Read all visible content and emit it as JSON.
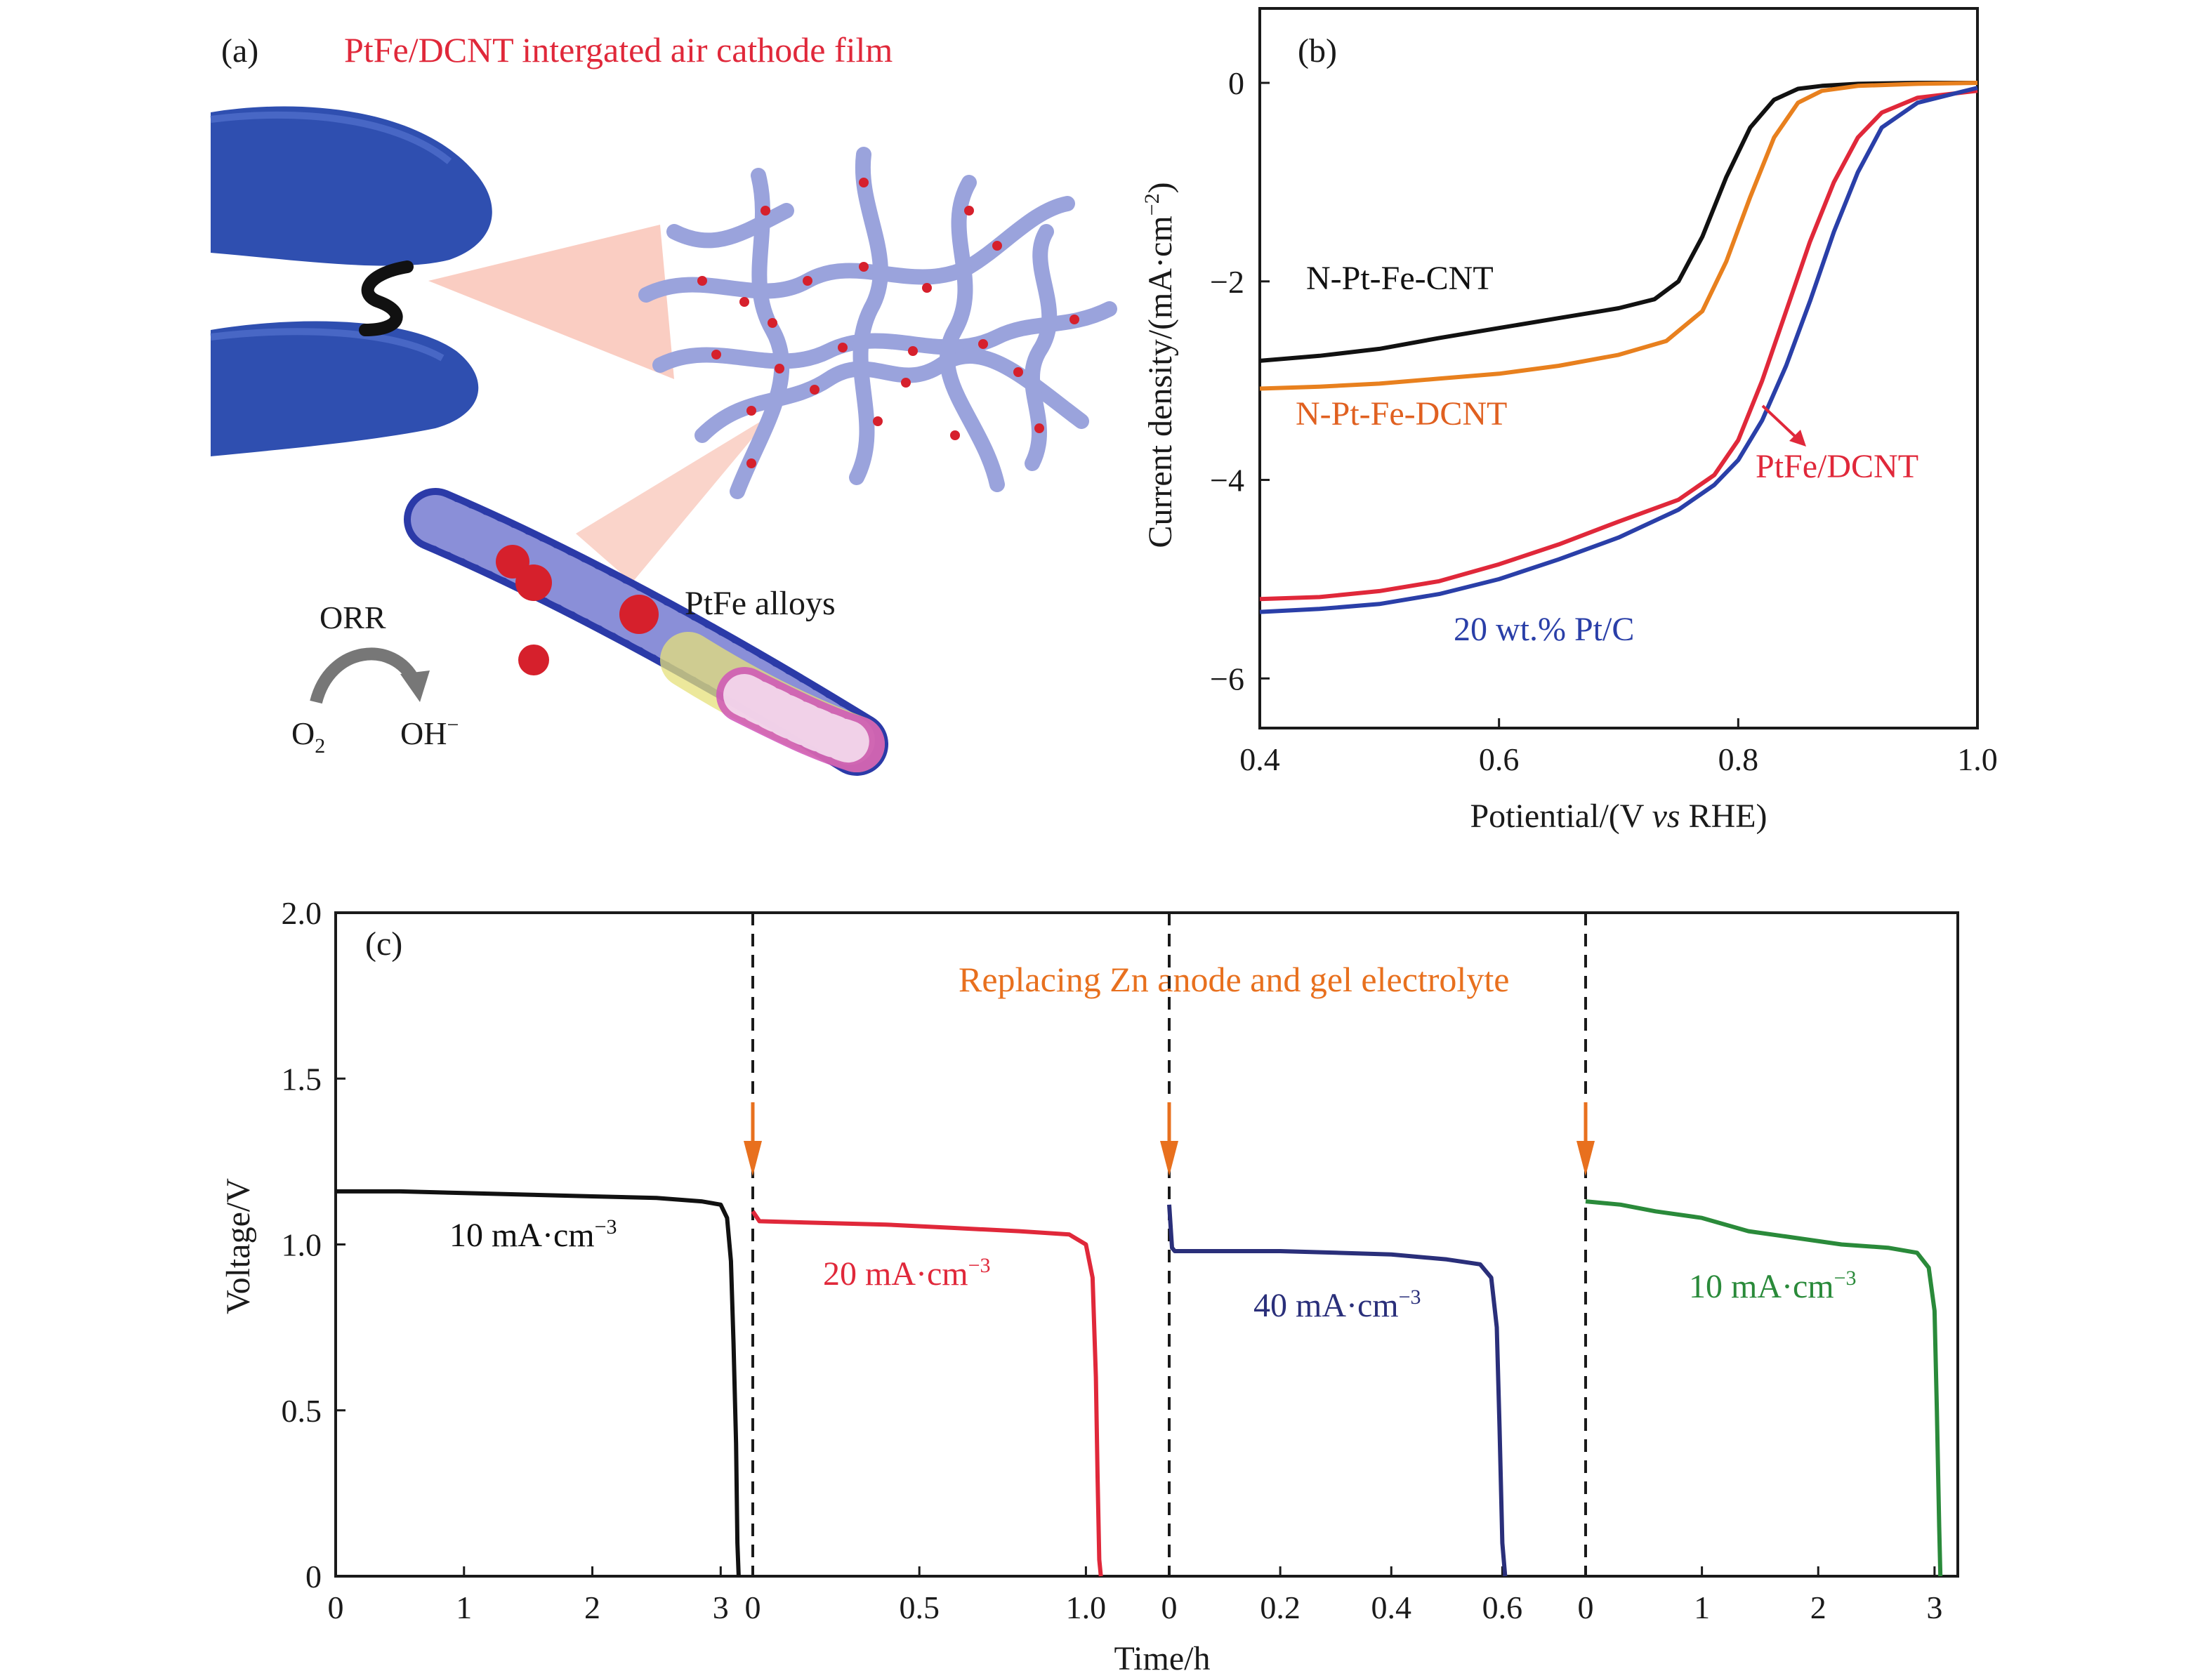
{
  "panel_a": {
    "label": "(a)",
    "title": "PtFe/DCNT intergated air cathode film",
    "alloy_label": "PtFe alloys",
    "orr_label": "ORR",
    "o2_main": "O",
    "o2_sub": "2",
    "oh_label": "OH",
    "oh_sup": "−",
    "icons": [
      "gloved-fingers-icon",
      "carbon-nanotube-network-icon",
      "nanotube-with-alloy-particles-icon",
      "curved-arrow-icon"
    ],
    "colors": {
      "title": "#e0283a",
      "glove": "#2f4fb0",
      "tube": "#9aa3dc",
      "particle": "#d6202c"
    }
  },
  "chart_data": [
    {
      "type": "line",
      "panel": "(b)",
      "xlabel_main": "Potiential/(V ",
      "xlabel_italic": "vs",
      "xlabel_rest": " RHE)",
      "ylabel_main": "Current density/(mA·cm",
      "ylabel_sup": "−2",
      "ylabel_close": ")",
      "xlim": [
        0.4,
        1.0
      ],
      "ylim": [
        -6.5,
        0.75
      ],
      "xticks": [
        "0.4",
        "0.6",
        "0.8",
        "1.0"
      ],
      "xtick_values": [
        0.4,
        0.6,
        0.8,
        1.0
      ],
      "yticks": [
        "0",
        "−2",
        "−4",
        "−6"
      ],
      "ytick_values": [
        0,
        -2,
        -4,
        -6
      ],
      "grid": false,
      "series": [
        {
          "name": "N-Pt-Fe-CNT",
          "color": "#111111",
          "x": [
            0.4,
            0.45,
            0.5,
            0.55,
            0.6,
            0.65,
            0.7,
            0.73,
            0.75,
            0.77,
            0.79,
            0.81,
            0.83,
            0.85,
            0.87,
            0.9,
            0.95,
            1.0
          ],
          "y": [
            -2.8,
            -2.75,
            -2.68,
            -2.57,
            -2.47,
            -2.37,
            -2.27,
            -2.18,
            -2.0,
            -1.55,
            -0.95,
            -0.45,
            -0.17,
            -0.06,
            -0.03,
            -0.01,
            0,
            0
          ]
        },
        {
          "name": "N-Pt-Fe-DCNT",
          "color": "#e8801e",
          "x": [
            0.4,
            0.45,
            0.5,
            0.55,
            0.6,
            0.65,
            0.7,
            0.74,
            0.77,
            0.79,
            0.81,
            0.83,
            0.85,
            0.87,
            0.9,
            0.95,
            1.0
          ],
          "y": [
            -3.08,
            -3.06,
            -3.03,
            -2.98,
            -2.93,
            -2.85,
            -2.74,
            -2.6,
            -2.3,
            -1.8,
            -1.15,
            -0.55,
            -0.2,
            -0.08,
            -0.03,
            -0.01,
            0
          ]
        },
        {
          "name": "PtFe/DCNT",
          "color": "#e0283a",
          "x": [
            0.4,
            0.45,
            0.5,
            0.55,
            0.6,
            0.65,
            0.7,
            0.75,
            0.78,
            0.8,
            0.82,
            0.84,
            0.86,
            0.88,
            0.9,
            0.92,
            0.95,
            1.0
          ],
          "y": [
            -5.2,
            -5.18,
            -5.12,
            -5.02,
            -4.85,
            -4.65,
            -4.42,
            -4.2,
            -3.95,
            -3.6,
            -3.0,
            -2.3,
            -1.6,
            -1.0,
            -0.55,
            -0.3,
            -0.15,
            -0.08
          ]
        },
        {
          "name": "20 wt.% Pt/C",
          "color": "#2a3fa8",
          "x": [
            0.4,
            0.45,
            0.5,
            0.55,
            0.6,
            0.65,
            0.7,
            0.75,
            0.78,
            0.8,
            0.82,
            0.84,
            0.86,
            0.88,
            0.9,
            0.92,
            0.95,
            1.0
          ],
          "y": [
            -5.33,
            -5.3,
            -5.25,
            -5.15,
            -5.0,
            -4.8,
            -4.58,
            -4.3,
            -4.05,
            -3.8,
            -3.4,
            -2.85,
            -2.2,
            -1.5,
            -0.9,
            -0.45,
            -0.2,
            -0.05
          ]
        }
      ],
      "annotations": [
        "N-Pt-Fe-CNT",
        "N-Pt-Fe-DCNT",
        "PtFe/DCNT",
        "20 wt.% Pt/C"
      ]
    },
    {
      "type": "line",
      "panel": "(c)",
      "xlabel": "Time/h",
      "ylabel": "Voltage/V",
      "ylim": [
        0,
        2.0
      ],
      "yticks": [
        "0",
        "0.5",
        "1.0",
        "1.5",
        "2.0"
      ],
      "ytick_values": [
        0,
        0.5,
        1.0,
        1.5,
        2.0
      ],
      "grid": false,
      "annotation": "Replacing Zn anode and gel electrolyte",
      "annotation_color": "#e8701e",
      "segments": [
        {
          "label": "10 mA·cm",
          "label_sup": "−3",
          "color": "#111111",
          "xlim": [
            0,
            3.25
          ],
          "xticks": [
            "0",
            "1",
            "2",
            "3"
          ],
          "xtick_values": [
            0,
            1,
            2,
            3
          ],
          "x": [
            0,
            0.5,
            1.0,
            1.5,
            2.0,
            2.5,
            2.85,
            3.0,
            3.05,
            3.08,
            3.1,
            3.12,
            3.13,
            3.14
          ],
          "y": [
            1.16,
            1.16,
            1.155,
            1.15,
            1.145,
            1.14,
            1.13,
            1.12,
            1.08,
            0.95,
            0.7,
            0.4,
            0.1,
            0
          ]
        },
        {
          "label": "20 mA·cm",
          "label_sup": "−3",
          "color": "#e0283a",
          "xlim": [
            0,
            1.25
          ],
          "xticks": [
            "0",
            "0.5",
            "1.0"
          ],
          "xtick_values": [
            0,
            0.5,
            1.0
          ],
          "x": [
            0,
            0.02,
            0.2,
            0.4,
            0.6,
            0.8,
            0.95,
            1.0,
            1.02,
            1.03,
            1.035,
            1.04,
            1.045
          ],
          "y": [
            1.1,
            1.07,
            1.065,
            1.06,
            1.05,
            1.04,
            1.03,
            1.0,
            0.9,
            0.6,
            0.3,
            0.05,
            0
          ]
        },
        {
          "label": "40 mA·cm",
          "label_sup": "−3",
          "color": "#2a2f7a",
          "xlim": [
            0,
            0.75
          ],
          "xticks": [
            "0",
            "0.2",
            "0.4",
            "0.6"
          ],
          "xtick_values": [
            0,
            0.2,
            0.4,
            0.6
          ],
          "x": [
            0,
            0.005,
            0.01,
            0.1,
            0.2,
            0.3,
            0.4,
            0.5,
            0.56,
            0.58,
            0.59,
            0.595,
            0.6,
            0.605
          ],
          "y": [
            1.12,
            0.99,
            0.98,
            0.98,
            0.98,
            0.975,
            0.97,
            0.955,
            0.94,
            0.9,
            0.75,
            0.45,
            0.1,
            0
          ]
        },
        {
          "label": "10 mA·cm",
          "label_sup": "−3",
          "color": "#2a8a3a",
          "xlim": [
            0,
            3.2
          ],
          "xticks": [
            "0",
            "1",
            "2",
            "3"
          ],
          "xtick_values": [
            0,
            1,
            2,
            3
          ],
          "x": [
            0,
            0.3,
            0.6,
            1.0,
            1.4,
            1.8,
            2.2,
            2.6,
            2.85,
            2.95,
            3.0,
            3.02,
            3.04,
            3.05
          ],
          "y": [
            1.13,
            1.12,
            1.1,
            1.08,
            1.04,
            1.02,
            1.0,
            0.99,
            0.975,
            0.93,
            0.8,
            0.5,
            0.15,
            0
          ]
        }
      ]
    }
  ]
}
